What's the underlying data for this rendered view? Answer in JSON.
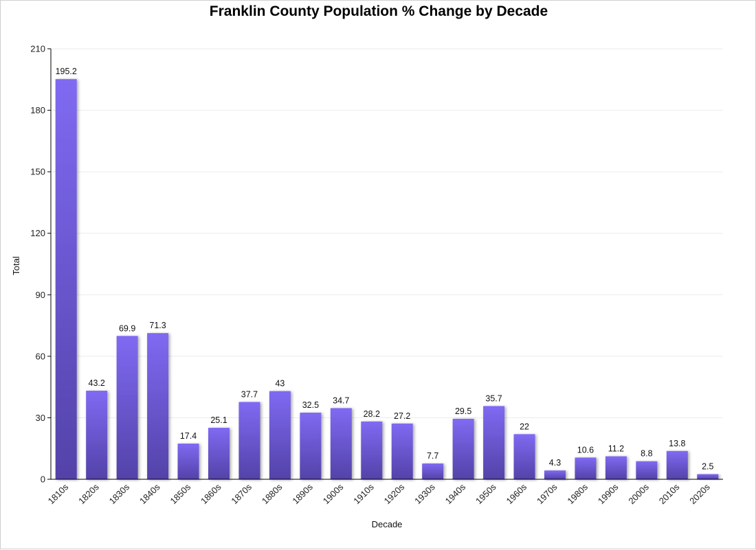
{
  "chart_data": {
    "type": "bar",
    "title": "Franklin County Population % Change by Decade",
    "xlabel": "Decade",
    "ylabel": "Total",
    "ylim": [
      0,
      210
    ],
    "yticks": [
      0,
      30,
      60,
      90,
      120,
      150,
      180,
      210
    ],
    "categories": [
      "1810s",
      "1820s",
      "1830s",
      "1840s",
      "1850s",
      "1860s",
      "1870s",
      "1880s",
      "1890s",
      "1900s",
      "1910s",
      "1920s",
      "1930s",
      "1940s",
      "1950s",
      "1960s",
      "1970s",
      "1980s",
      "1990s",
      "2000s",
      "2010s",
      "2020s"
    ],
    "values": [
      195.2,
      43.2,
      69.9,
      71.3,
      17.4,
      25.1,
      37.7,
      43,
      32.5,
      34.7,
      28.2,
      27.2,
      7.7,
      29.5,
      35.7,
      22,
      4.3,
      10.6,
      11.2,
      8.8,
      13.8,
      2.5
    ],
    "grid": true,
    "legend": "none",
    "colors": {
      "bar_top": "#7f6af2",
      "bar_bottom": "#5342a8",
      "grid": "#ebebeb",
      "axis": "#000000"
    }
  }
}
